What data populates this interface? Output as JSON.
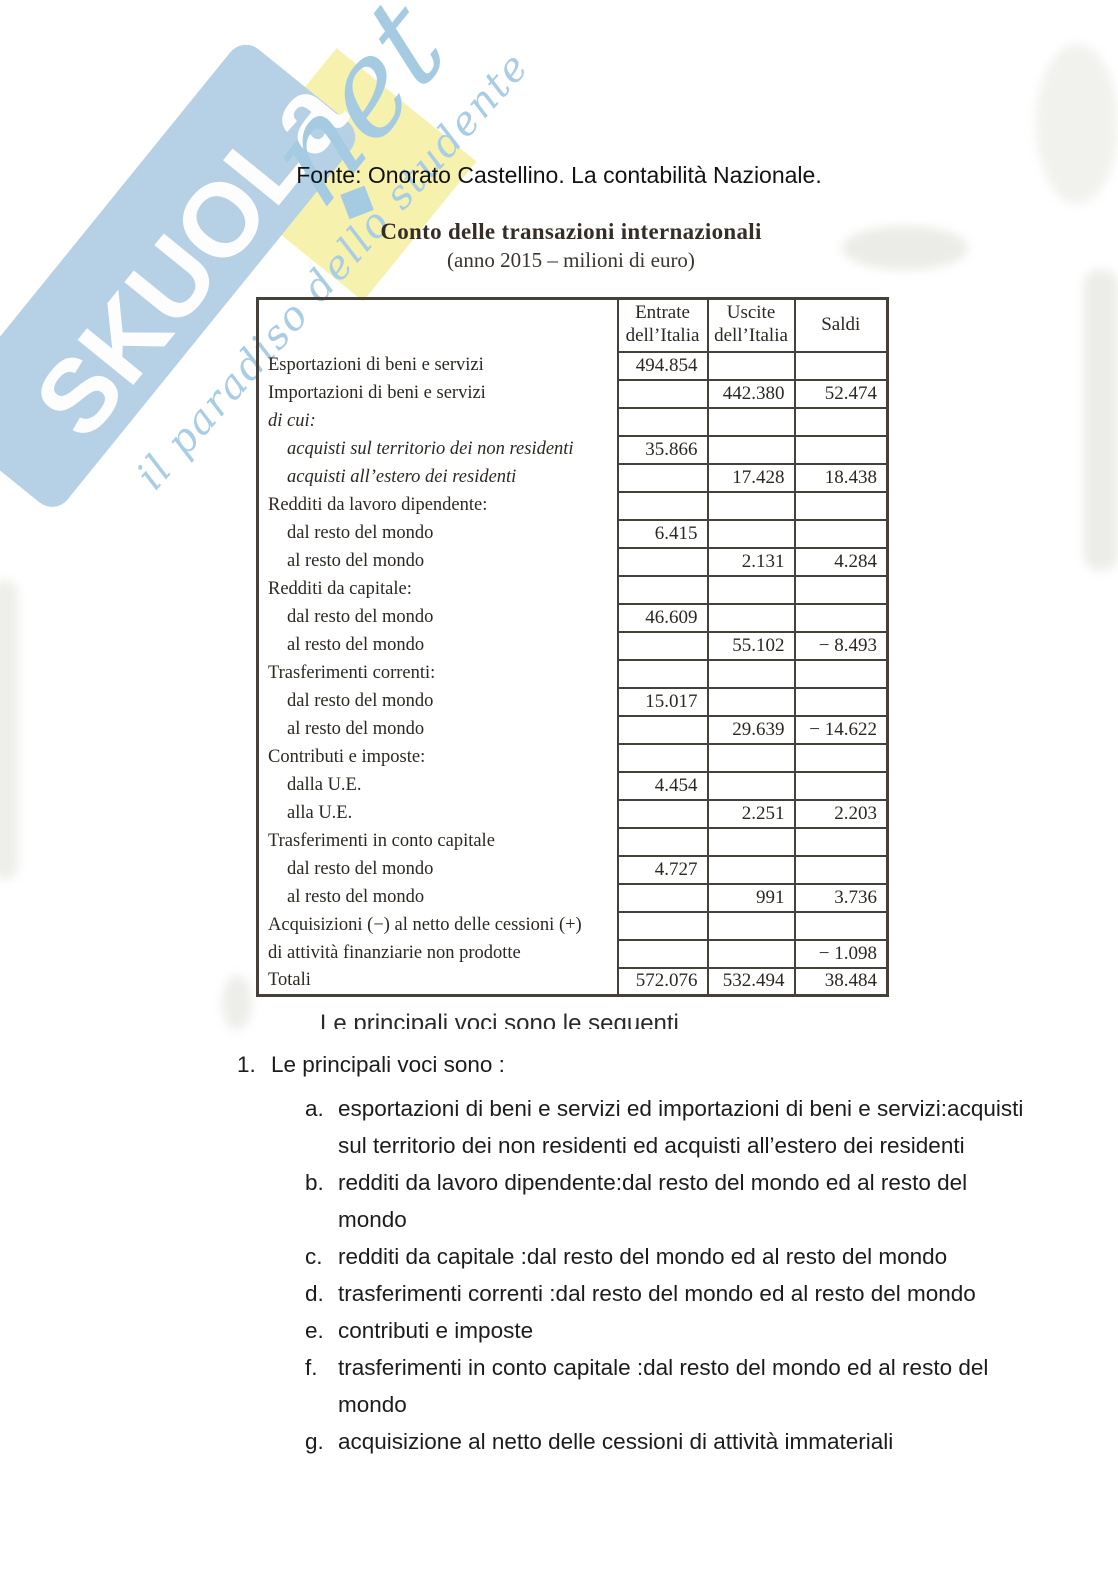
{
  "watermark": {
    "brand": "SKUOLa",
    "tld": "net",
    "tagline": "il paradiso dello studente",
    "colors": {
      "band_blue": "#b6d1e6",
      "script_blue": "#a5cbe3",
      "yellow": "#f7f1ae"
    }
  },
  "header": {
    "source": "Fonte: Onorato Castellino. La contabilità Nazionale."
  },
  "scanned_table": {
    "title": "Conto delle transazioni internazionali",
    "subtitle": "(anno 2015 – milioni di euro)",
    "columns": [
      "Entrate\ndell’Italia",
      "Uscite\ndell’Italia",
      "Saldi"
    ],
    "rows": [
      {
        "label": "Esportazioni di beni e servizi",
        "style": "item",
        "entrate": "494.854",
        "uscite": "",
        "saldi": ""
      },
      {
        "label": "Importazioni di beni e servizi",
        "style": "item",
        "entrate": "",
        "uscite": "442.380",
        "saldi": "52.474"
      },
      {
        "label": "di cui:",
        "style": "italic",
        "entrate": "",
        "uscite": "",
        "saldi": ""
      },
      {
        "label": "acquisti sul territorio dei non residenti",
        "style": "italic-indent",
        "entrate": "35.866",
        "uscite": "",
        "saldi": ""
      },
      {
        "label": "acquisti all’estero dei residenti",
        "style": "italic-indent",
        "entrate": "",
        "uscite": "17.428",
        "saldi": "18.438"
      },
      {
        "label": "Redditi da lavoro dipendente:",
        "style": "group",
        "entrate": "",
        "uscite": "",
        "saldi": ""
      },
      {
        "label": "dal resto del mondo",
        "style": "indent",
        "entrate": "6.415",
        "uscite": "",
        "saldi": ""
      },
      {
        "label": "al resto del mondo",
        "style": "indent",
        "entrate": "",
        "uscite": "2.131",
        "saldi": "4.284"
      },
      {
        "label": "Redditi da capitale:",
        "style": "group",
        "entrate": "",
        "uscite": "",
        "saldi": ""
      },
      {
        "label": "dal resto del mondo",
        "style": "indent",
        "entrate": "46.609",
        "uscite": "",
        "saldi": ""
      },
      {
        "label": "al resto del mondo",
        "style": "indent",
        "entrate": "",
        "uscite": "55.102",
        "saldi": "− 8.493"
      },
      {
        "label": "Trasferimenti correnti:",
        "style": "group",
        "entrate": "",
        "uscite": "",
        "saldi": ""
      },
      {
        "label": "dal resto del mondo",
        "style": "indent",
        "entrate": "15.017",
        "uscite": "",
        "saldi": ""
      },
      {
        "label": "al resto del mondo",
        "style": "indent",
        "entrate": "",
        "uscite": "29.639",
        "saldi": "− 14.622"
      },
      {
        "label": "Contributi e imposte:",
        "style": "group",
        "entrate": "",
        "uscite": "",
        "saldi": ""
      },
      {
        "label": "dalla U.E.",
        "style": "indent",
        "entrate": "4.454",
        "uscite": "",
        "saldi": ""
      },
      {
        "label": "alla U.E.",
        "style": "indent",
        "entrate": "",
        "uscite": "2.251",
        "saldi": "2.203"
      },
      {
        "label": "Trasferimenti in conto capitale",
        "style": "group",
        "entrate": "",
        "uscite": "",
        "saldi": ""
      },
      {
        "label": "dal resto del mondo",
        "style": "indent",
        "entrate": "4.727",
        "uscite": "",
        "saldi": ""
      },
      {
        "label": "al resto del mondo",
        "style": "indent",
        "entrate": "",
        "uscite": "991",
        "saldi": "3.736"
      },
      {
        "label": "Acquisizioni (−) al netto delle cessioni (+)",
        "style": "item",
        "entrate": "",
        "uscite": "",
        "saldi": ""
      },
      {
        "label": "di attività finanziarie non prodotte",
        "style": "item",
        "entrate": "",
        "uscite": "",
        "saldi": "− 1.098"
      },
      {
        "label": "Totali",
        "style": "total",
        "entrate": "572.076",
        "uscite": "532.494",
        "saldi": "38.484"
      }
    ],
    "cutoff_caption": "Le principali voci sono le seguenti"
  },
  "notes": {
    "number": "1.",
    "heading": "Le principali voci sono :",
    "items": [
      {
        "marker": "a.",
        "text": "esportazioni di beni e servizi ed importazioni di beni e servizi:acquisti\nsul territorio dei non residenti ed acquisti all’estero dei residenti"
      },
      {
        "marker": "b.",
        "text": "redditi da lavoro dipendente:dal resto del mondo ed al resto del\nmondo"
      },
      {
        "marker": "c.",
        "text": "redditi da capitale :dal resto del mondo ed al resto del mondo"
      },
      {
        "marker": "d.",
        "text": "trasferimenti correnti :dal resto del mondo ed al resto del mondo"
      },
      {
        "marker": "e.",
        "text": "contributi e imposte"
      },
      {
        "marker": "f.",
        "text": "trasferimenti in conto capitale :dal resto del mondo ed al resto del\nmondo"
      },
      {
        "marker": "g.",
        "text": "acquisizione al netto delle cessioni di attività immateriali"
      }
    ]
  }
}
